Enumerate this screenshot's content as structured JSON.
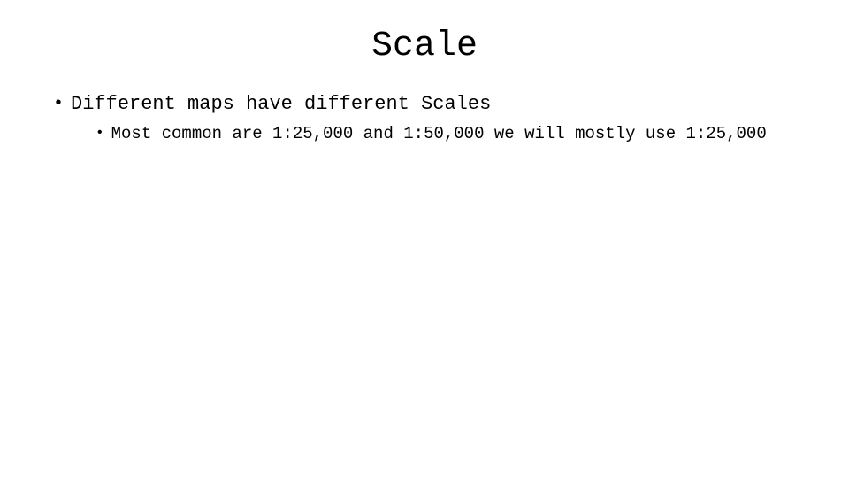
{
  "slide": {
    "title": "Scale",
    "background_color": "#ffffff",
    "text_color": "#000000",
    "font_family": "Courier New",
    "title_fontsize": 40,
    "body_fontsize_l1": 22,
    "body_fontsize_l2": 19,
    "bullets": {
      "level1": {
        "marker": "•",
        "text": "Different maps have different Scales"
      },
      "level2": {
        "marker": "•",
        "text": "Most common are 1:25,000 and 1:50,000 we will mostly use 1:25,000"
      }
    }
  }
}
